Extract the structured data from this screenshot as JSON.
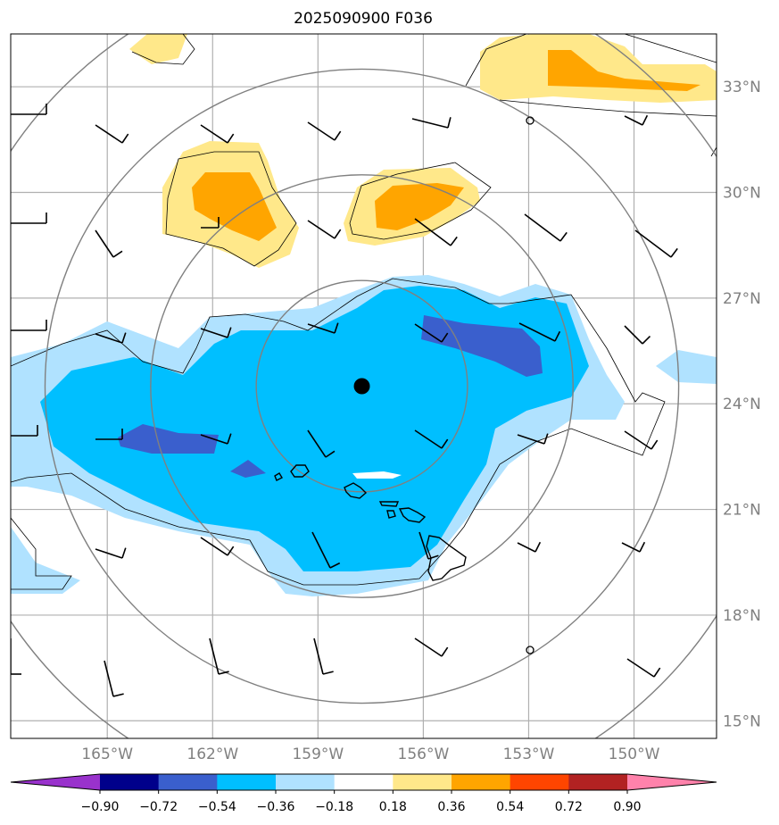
{
  "title": "2025090900 F036",
  "map": {
    "lon_range": [
      -167.75,
      -147.65
    ],
    "lat_range": [
      14.5,
      34.5
    ],
    "lon_ticks": [
      {
        "value": -165,
        "label": "165°W"
      },
      {
        "value": -162,
        "label": "162°W"
      },
      {
        "value": -159,
        "label": "159°W"
      },
      {
        "value": -156,
        "label": "156°W"
      },
      {
        "value": -153,
        "label": "153°W"
      },
      {
        "value": -150,
        "label": "150°W"
      }
    ],
    "lat_ticks": [
      {
        "value": 15,
        "label": "15°N"
      },
      {
        "value": 18,
        "label": "18°N"
      },
      {
        "value": 21,
        "label": "21°N"
      },
      {
        "value": 24,
        "label": "24°N"
      },
      {
        "value": 27,
        "label": "27°N"
      },
      {
        "value": 30,
        "label": "30°N"
      },
      {
        "value": 33,
        "label": "33°N"
      }
    ],
    "gridlines": true,
    "storm_center": {
      "lon": -157.75,
      "lat": 24.5
    },
    "range_rings_deg": [
      3,
      6,
      9,
      12
    ]
  },
  "colorbar": {
    "levels": [
      "−0.90",
      "−0.72",
      "−0.54",
      "−0.36",
      "−0.18",
      "0.18",
      "0.36",
      "0.54",
      "0.72",
      "0.90"
    ],
    "colors": [
      "#9932cc",
      "#00008b",
      "#3a5fcd",
      "#00bfff",
      "#b0e2ff",
      "#ffffff",
      "#ffe88a",
      "#ffa500",
      "#ff4500",
      "#b22222",
      "#ff82ab"
    ],
    "extend": "both"
  },
  "colors": {
    "land": "#000000",
    "grid": "#b0b0b0",
    "rings": "#808080",
    "light_blue": "#b0e2ff",
    "blue": "#00bfff",
    "dark_blue": "#3a5fcd",
    "light_orange": "#ffe88a",
    "orange": "#ffa500"
  }
}
